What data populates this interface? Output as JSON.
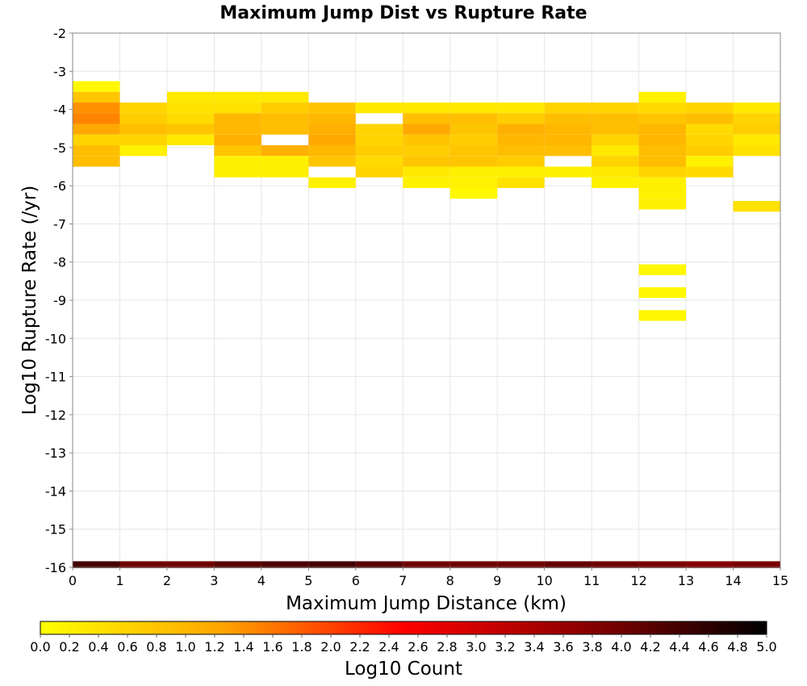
{
  "chart_data": {
    "type": "heatmap",
    "title": "Maximum Jump Dist vs Rupture Rate",
    "xlabel": "Maximum Jump Distance (km)",
    "ylabel": "Log10 Rupture Rate (/yr)",
    "xlim": [
      0,
      15
    ],
    "ylim": [
      -16,
      -2
    ],
    "x_ticks": [
      0,
      1,
      2,
      3,
      4,
      5,
      6,
      7,
      8,
      9,
      10,
      11,
      12,
      13,
      14,
      15
    ],
    "y_ticks": [
      -2,
      -3,
      -4,
      -5,
      -6,
      -7,
      -8,
      -9,
      -10,
      -11,
      -12,
      -13,
      -14,
      -15,
      -16
    ],
    "grid": true,
    "x_bin_width": 1,
    "y_bin_height": 0.28,
    "colorbar": {
      "label": "Log10 Count",
      "range": [
        0,
        5
      ],
      "ticks": [
        "0.0",
        "0.2",
        "0.4",
        "0.6",
        "0.8",
        "1.0",
        "1.2",
        "1.4",
        "1.6",
        "1.8",
        "2.0",
        "2.2",
        "2.4",
        "2.6",
        "2.8",
        "3.0",
        "3.2",
        "3.4",
        "3.6",
        "3.8",
        "4.0",
        "4.2",
        "4.4",
        "4.6",
        "4.8",
        "5.0"
      ],
      "colormap": [
        "#ffff00",
        "#ffa500",
        "#ff0000",
        "#8b0000",
        "#000000"
      ]
    },
    "cells": [
      {
        "x": 0.5,
        "y": [
          -3.4,
          -3.68,
          -3.96,
          -4.24,
          -4.52,
          -4.8,
          -5.08,
          -5.36
        ],
        "v": [
          0.1,
          0.8,
          1.4,
          1.5,
          1.2,
          0.6,
          0.9,
          0.9
        ]
      },
      {
        "x": 1.5,
        "y": [
          -3.96,
          -4.24,
          -4.52,
          -4.8,
          -5.08
        ],
        "v": [
          0.6,
          0.7,
          0.9,
          0.6,
          0.2
        ]
      },
      {
        "x": 2.5,
        "y": [
          -3.68,
          -3.96,
          -4.24,
          -4.52,
          -4.8
        ],
        "v": [
          0.3,
          0.4,
          0.5,
          0.8,
          0.3
        ]
      },
      {
        "x": 3.5,
        "y": [
          -3.68,
          -3.96,
          -4.24,
          -4.52,
          -4.8,
          -5.08,
          -5.36,
          -5.64
        ],
        "v": [
          0.3,
          0.4,
          1.0,
          1.0,
          1.1,
          0.8,
          0.2,
          0.2
        ]
      },
      {
        "x": 4.5,
        "y": [
          -3.68,
          -3.96,
          -4.24,
          -4.52,
          -5.08,
          -5.36,
          -5.64
        ],
        "v": [
          0.3,
          0.7,
          0.9,
          0.9,
          1.1,
          0.2,
          0.2
        ]
      },
      {
        "x": 5.5,
        "y": [
          -3.96,
          -4.24,
          -4.52,
          -4.8,
          -5.08,
          -5.36,
          -5.92
        ],
        "v": [
          0.8,
          1.0,
          1.1,
          1.2,
          1.0,
          0.8,
          0.2
        ]
      },
      {
        "x": 6.5,
        "y": [
          -3.96,
          -4.52,
          -4.8,
          -5.08,
          -5.36,
          -5.64
        ],
        "v": [
          0.3,
          0.6,
          0.6,
          0.7,
          0.5,
          0.6
        ]
      },
      {
        "x": 7.5,
        "y": [
          -3.96,
          -4.24,
          -4.52,
          -4.8,
          -5.08,
          -5.36,
          -5.64,
          -5.92
        ],
        "v": [
          0.3,
          0.9,
          1.2,
          0.8,
          0.7,
          0.8,
          0.3,
          0.2
        ]
      },
      {
        "x": 8.5,
        "y": [
          -3.96,
          -4.24,
          -4.52,
          -4.8,
          -5.08,
          -5.36,
          -5.64,
          -5.92,
          -6.2
        ],
        "v": [
          0.3,
          0.9,
          0.8,
          0.7,
          0.8,
          0.8,
          0.2,
          0.2,
          0.1
        ]
      },
      {
        "x": 9.5,
        "y": [
          -3.96,
          -4.24,
          -4.52,
          -4.8,
          -5.08,
          -5.36,
          -5.64,
          -5.92
        ],
        "v": [
          0.3,
          0.7,
          1.1,
          1.0,
          0.9,
          0.7,
          0.2,
          0.4
        ]
      },
      {
        "x": 10.5,
        "y": [
          -3.96,
          -4.24,
          -4.52,
          -4.8,
          -5.08,
          -5.64
        ],
        "v": [
          0.6,
          0.9,
          1.0,
          1.0,
          0.9,
          0.2
        ]
      },
      {
        "x": 11.5,
        "y": [
          -3.96,
          -4.24,
          -4.52,
          -4.8,
          -5.08,
          -5.36,
          -5.64,
          -5.92
        ],
        "v": [
          0.6,
          0.9,
          0.9,
          0.6,
          0.3,
          0.6,
          0.3,
          0.2
        ]
      },
      {
        "x": 12.5,
        "y": [
          -3.68,
          -3.96,
          -4.24,
          -4.52,
          -4.8,
          -5.08,
          -5.36,
          -5.64,
          -5.92,
          -6.2,
          -6.48,
          -8.2,
          -8.8,
          -9.4
        ],
        "v": [
          0.2,
          0.5,
          0.8,
          1.0,
          1.0,
          0.9,
          0.9,
          0.6,
          0.2,
          0.2,
          0.2,
          0.1,
          0.1,
          0.1
        ]
      },
      {
        "x": 13.5,
        "y": [
          -3.96,
          -4.24,
          -4.52,
          -4.8,
          -5.08,
          -5.36,
          -5.64
        ],
        "v": [
          0.6,
          0.9,
          0.5,
          0.6,
          0.7,
          0.2,
          0.5
        ]
      },
      {
        "x": 14.5,
        "y": [
          -3.96,
          -4.24,
          -4.52,
          -4.8,
          -5.08,
          -6.54
        ],
        "v": [
          0.3,
          0.6,
          0.7,
          0.3,
          0.4,
          0.4
        ]
      }
    ],
    "bottom_row": {
      "y": -15.92,
      "v": [
        4.4,
        4.0,
        4.0,
        4.2,
        4.3,
        4.4,
        4.2,
        4.0,
        4.0,
        4.0,
        4.1,
        4.0,
        3.9,
        3.8,
        3.9
      ]
    }
  }
}
